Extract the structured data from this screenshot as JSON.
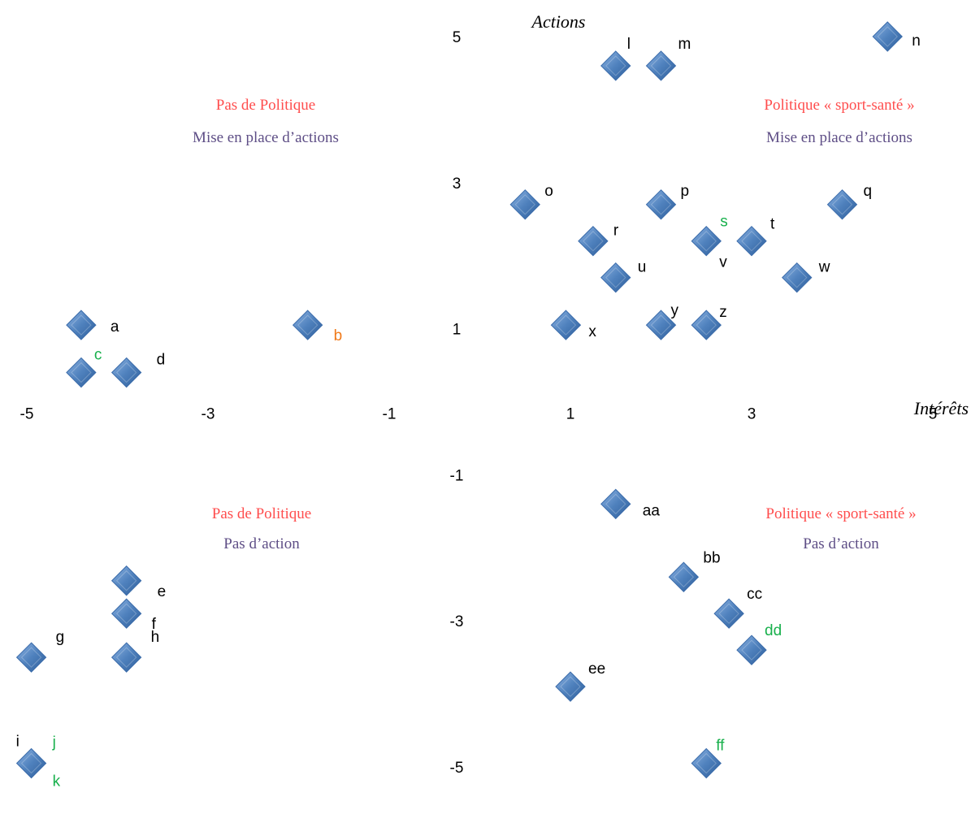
{
  "chart_data": {
    "type": "scatter",
    "xlabel": "Intérêts",
    "ylabel": "Actions",
    "xlim": [
      -5,
      5
    ],
    "ylim": [
      -5,
      5
    ],
    "x_ticks": [
      -5,
      -3,
      -1,
      1,
      3,
      5
    ],
    "y_ticks": [
      5,
      3,
      1,
      -1,
      -3,
      -5
    ],
    "grid": false,
    "colors": {
      "marker": "#4F81BD",
      "marker_dark": "#2E5E9A",
      "policy_text": "#FF4D4D",
      "action_text": "#5E4E86",
      "label_black": "#000000",
      "label_green": "#18B04C",
      "label_orange": "#F07A1A"
    },
    "quadrants": [
      {
        "position": "top-left",
        "policy": "Pas de Politique",
        "action": "Mise en place d’actions"
      },
      {
        "position": "top-right",
        "policy": "Politique « sport-santé »",
        "action": "Mise en place d’actions"
      },
      {
        "position": "bottom-left",
        "policy": "Pas de Politique",
        "action": "Pas d’action"
      },
      {
        "position": "bottom-right",
        "policy": "Politique « sport-santé »",
        "action": "Pas d’action"
      }
    ],
    "points": [
      {
        "label": "a",
        "x": -4.4,
        "y": 1.05,
        "color": "black"
      },
      {
        "label": "b",
        "x": -1.9,
        "y": 1.05,
        "color": "orange"
      },
      {
        "label": "c",
        "x": -4.4,
        "y": 0.4,
        "color": "green"
      },
      {
        "label": "d",
        "x": -3.9,
        "y": 0.4,
        "color": "black"
      },
      {
        "label": "e",
        "x": -3.9,
        "y": -2.45,
        "color": "black"
      },
      {
        "label": "f",
        "x": -3.9,
        "y": -2.9,
        "color": "black"
      },
      {
        "label": "g",
        "x": -4.95,
        "y": -3.5,
        "color": "black"
      },
      {
        "label": "h",
        "x": -3.9,
        "y": -3.5,
        "color": "black"
      },
      {
        "label": "i",
        "x": -4.95,
        "y": -4.95,
        "color": "black"
      },
      {
        "label": "j",
        "x": -4.95,
        "y": -4.95,
        "color": "green"
      },
      {
        "label": "k",
        "x": -4.95,
        "y": -4.95,
        "color": "green"
      },
      {
        "label": "l",
        "x": 1.5,
        "y": 4.6,
        "color": "black"
      },
      {
        "label": "m",
        "x": 2.0,
        "y": 4.6,
        "color": "black"
      },
      {
        "label": "n",
        "x": 4.5,
        "y": 5.0,
        "color": "black"
      },
      {
        "label": "o",
        "x": 0.5,
        "y": 2.7,
        "color": "black"
      },
      {
        "label": "p",
        "x": 2.0,
        "y": 2.7,
        "color": "black"
      },
      {
        "label": "q",
        "x": 4.0,
        "y": 2.7,
        "color": "black"
      },
      {
        "label": "r",
        "x": 1.25,
        "y": 2.2,
        "color": "black"
      },
      {
        "label": "s",
        "x": 2.5,
        "y": 2.2,
        "color": "green"
      },
      {
        "label": "t",
        "x": 3.0,
        "y": 2.2,
        "color": "black"
      },
      {
        "label": "u",
        "x": 1.5,
        "y": 1.7,
        "color": "black"
      },
      {
        "label": "v",
        "x": 2.5,
        "y": 2.2,
        "color": "black"
      },
      {
        "label": "w",
        "x": 3.5,
        "y": 1.7,
        "color": "black"
      },
      {
        "label": "x",
        "x": 0.95,
        "y": 1.05,
        "color": "black"
      },
      {
        "label": "y",
        "x": 2.0,
        "y": 1.05,
        "color": "black"
      },
      {
        "label": "z",
        "x": 2.5,
        "y": 1.05,
        "color": "black"
      },
      {
        "label": "aa",
        "x": 1.5,
        "y": -1.4,
        "color": "black"
      },
      {
        "label": "bb",
        "x": 2.25,
        "y": -2.4,
        "color": "black"
      },
      {
        "label": "cc",
        "x": 2.75,
        "y": -2.9,
        "color": "black"
      },
      {
        "label": "dd",
        "x": 3.0,
        "y": -3.4,
        "color": "green"
      },
      {
        "label": "ee",
        "x": 1.0,
        "y": -3.9,
        "color": "black"
      },
      {
        "label": "ff",
        "x": 2.5,
        "y": -4.95,
        "color": "green"
      }
    ]
  }
}
